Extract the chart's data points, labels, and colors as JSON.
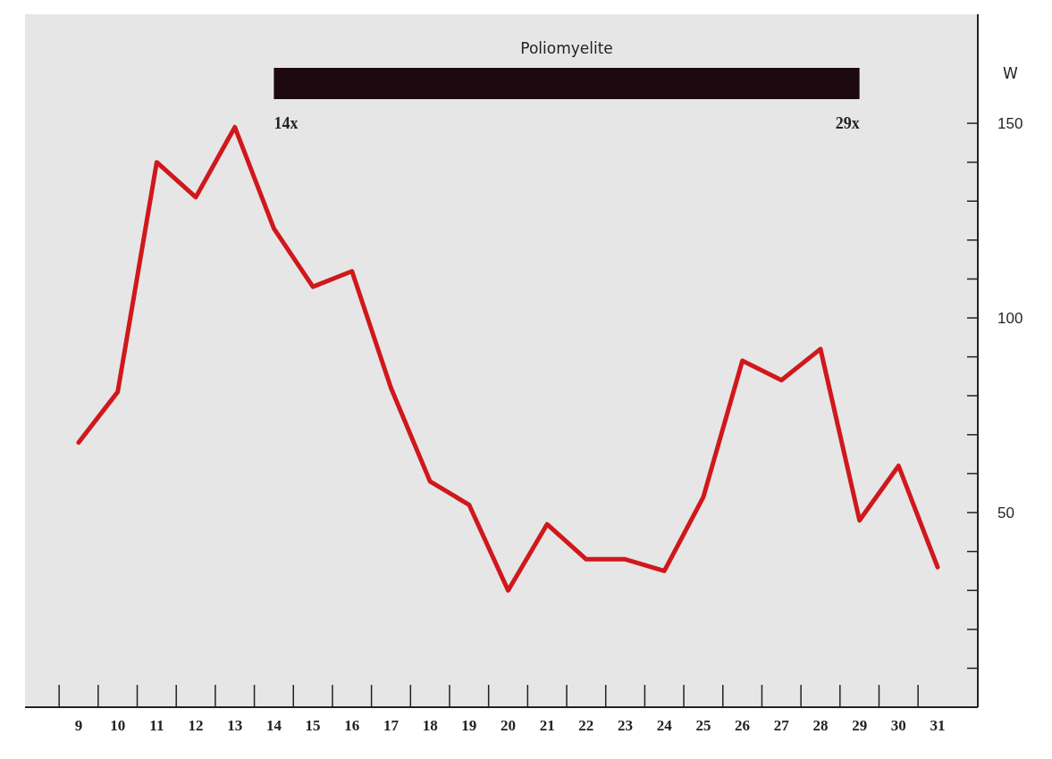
{
  "chart_data": {
    "type": "line",
    "categories": [
      "9",
      "10",
      "11",
      "12",
      "13",
      "14",
      "15",
      "16",
      "17",
      "18",
      "19",
      "20",
      "21",
      "22",
      "23",
      "24",
      "25",
      "26",
      "27",
      "28",
      "29",
      "30",
      "31"
    ],
    "series": [
      {
        "color": "#d0181c",
        "values": [
          68,
          81,
          140,
          131,
          149,
          123,
          108,
          112,
          82,
          58,
          52,
          30,
          47,
          38,
          38,
          35,
          54,
          89,
          84,
          92,
          48,
          62,
          36
        ]
      }
    ],
    "ylabel": "W",
    "ylim": [
      0,
      178
    ],
    "yticks": [
      {
        "value": 10,
        "label": null
      },
      {
        "value": 20,
        "label": null
      },
      {
        "value": 30,
        "label": null
      },
      {
        "value": 40,
        "label": null
      },
      50,
      {
        "value": 60,
        "label": null
      },
      {
        "value": 70,
        "label": null
      },
      {
        "value": 80,
        "label": null
      },
      {
        "value": 90,
        "label": null
      },
      100,
      {
        "value": 110,
        "label": null
      },
      {
        "value": 120,
        "label": null
      },
      {
        "value": 130,
        "label": null
      },
      {
        "value": 140,
        "label": null
      },
      150
    ],
    "bands": [
      {
        "axis": "x",
        "from": "14",
        "to": "29",
        "label": "Poliomyelite",
        "color": "#1c0a10"
      }
    ],
    "annotations": [
      "14x",
      "29x"
    ],
    "grid": false
  }
}
